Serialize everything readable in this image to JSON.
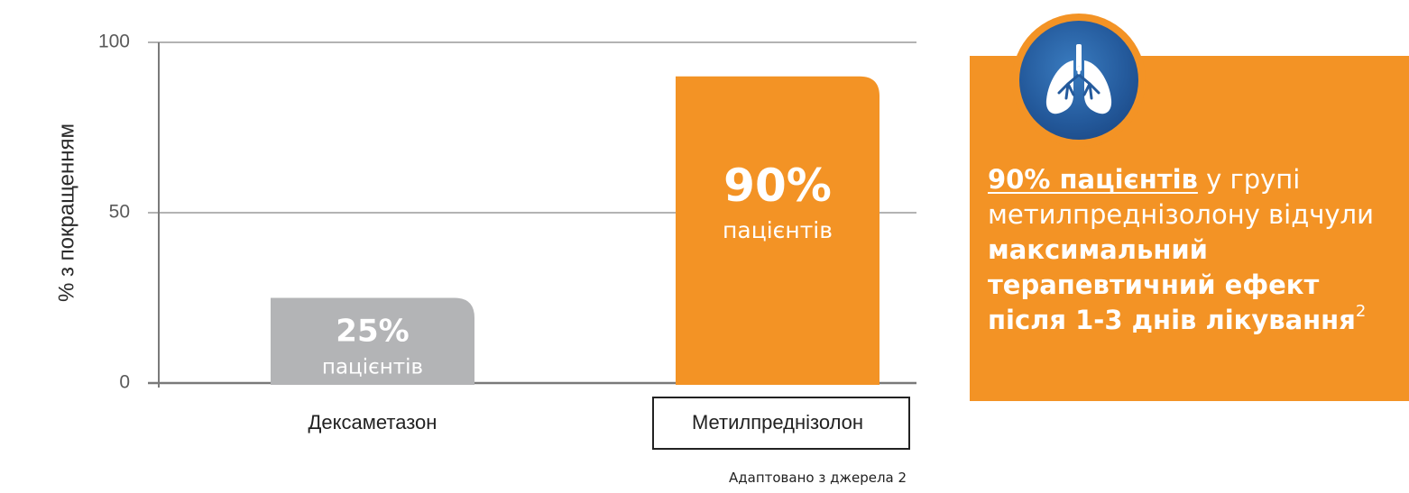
{
  "chart_data": {
    "type": "bar",
    "categories": [
      "Дексаметазон",
      "Метилпреднізолон"
    ],
    "values": [
      25,
      90
    ],
    "value_labels": [
      "25%",
      "90%"
    ],
    "value_sublabel": "пацієнтів",
    "ylabel": "% з покращенням",
    "ylim": [
      0,
      100
    ],
    "yticks": [
      0,
      50,
      100
    ],
    "grid": true,
    "colors": [
      "#b3b4b6",
      "#f39325"
    ],
    "highlighted_category": "Метилпреднізолон"
  },
  "source_note": "Адаптовано з джерела 2",
  "callout": {
    "icon": "lungs-icon",
    "highlight": "90% пацієнтів",
    "text_1": " у групі метилпреднізолону відчули ",
    "bold_1": "максимальний терапевтичний ефект",
    "bold_2": "після 1-3 днів лікування",
    "superscript": "2",
    "bg_color": "#f39325",
    "icon_color": "#245a9c"
  }
}
